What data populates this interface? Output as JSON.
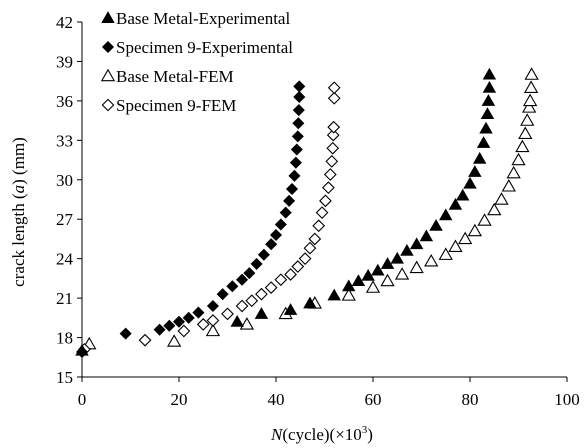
{
  "chart_data": {
    "type": "scatter",
    "title": "",
    "xlabel": {
      "prefix": "N",
      "rest": "(cycle)(×10",
      "sup": "3",
      "close": ")"
    },
    "ylabel": {
      "pre": "crack length (",
      "var": "a",
      "post": ") (mm)"
    },
    "xlim": [
      0,
      100
    ],
    "ylim": [
      15,
      42
    ],
    "x_ticks": [
      0,
      20,
      40,
      60,
      80,
      100
    ],
    "y_ticks": [
      15,
      18,
      21,
      24,
      27,
      30,
      33,
      36,
      39,
      42
    ],
    "grid": false,
    "legend_position": "top-left",
    "series": [
      {
        "name": "Base Metal-Experimental",
        "marker": "triangle-filled",
        "color": "#000000",
        "points": [
          [
            0.0,
            17.0
          ],
          [
            32.0,
            19.2
          ],
          [
            37.0,
            19.8
          ],
          [
            43.0,
            20.1
          ],
          [
            47.0,
            20.6
          ],
          [
            52.0,
            21.2
          ],
          [
            55.0,
            21.9
          ],
          [
            57.0,
            22.3
          ],
          [
            59.0,
            22.7
          ],
          [
            61.0,
            23.1
          ],
          [
            63.0,
            23.6
          ],
          [
            65.0,
            24.0
          ],
          [
            67.0,
            24.6
          ],
          [
            69.0,
            25.1
          ],
          [
            71.0,
            25.7
          ],
          [
            73.0,
            26.5
          ],
          [
            75.0,
            27.3
          ],
          [
            77.0,
            28.1
          ],
          [
            78.5,
            28.8
          ],
          [
            80.0,
            29.7
          ],
          [
            81.0,
            30.6
          ],
          [
            82.0,
            31.6
          ],
          [
            82.8,
            32.8
          ],
          [
            83.3,
            33.9
          ],
          [
            83.6,
            35.0
          ],
          [
            83.8,
            36.0
          ],
          [
            84.0,
            37.0
          ],
          [
            84.0,
            38.0
          ]
        ]
      },
      {
        "name": "Specimen 9-Experimental",
        "marker": "diamond-filled",
        "color": "#000000",
        "points": [
          [
            0.0,
            16.9
          ],
          [
            9.0,
            18.3
          ],
          [
            16.0,
            18.6
          ],
          [
            18.0,
            18.9
          ],
          [
            20.0,
            19.2
          ],
          [
            22.0,
            19.5
          ],
          [
            24.0,
            19.9
          ],
          [
            27.0,
            20.4
          ],
          [
            29.0,
            21.3
          ],
          [
            31.0,
            21.9
          ],
          [
            33.0,
            22.4
          ],
          [
            34.5,
            22.9
          ],
          [
            36.0,
            23.6
          ],
          [
            37.5,
            24.3
          ],
          [
            39.0,
            25.1
          ],
          [
            40.0,
            25.8
          ],
          [
            41.0,
            26.6
          ],
          [
            42.0,
            27.5
          ],
          [
            42.7,
            28.4
          ],
          [
            43.3,
            29.3
          ],
          [
            43.8,
            30.3
          ],
          [
            44.1,
            31.3
          ],
          [
            44.3,
            32.3
          ],
          [
            44.5,
            33.3
          ],
          [
            44.6,
            34.3
          ],
          [
            44.7,
            35.3
          ],
          [
            44.8,
            36.3
          ],
          [
            44.8,
            37.1
          ]
        ]
      },
      {
        "name": "Base Metal-FEM",
        "marker": "triangle-open",
        "color": "#000000",
        "points": [
          [
            1.5,
            17.5
          ],
          [
            19.0,
            17.7
          ],
          [
            27.0,
            18.5
          ],
          [
            34.0,
            19.0
          ],
          [
            42.0,
            19.8
          ],
          [
            48.0,
            20.6
          ],
          [
            55.0,
            21.2
          ],
          [
            60.0,
            21.8
          ],
          [
            63.0,
            22.3
          ],
          [
            66.0,
            22.8
          ],
          [
            69.0,
            23.3
          ],
          [
            72.0,
            23.8
          ],
          [
            75.0,
            24.3
          ],
          [
            77.0,
            24.9
          ],
          [
            79.0,
            25.5
          ],
          [
            81.0,
            26.1
          ],
          [
            83.0,
            26.9
          ],
          [
            85.0,
            27.7
          ],
          [
            86.5,
            28.5
          ],
          [
            88.0,
            29.5
          ],
          [
            89.0,
            30.5
          ],
          [
            90.0,
            31.5
          ],
          [
            90.8,
            32.5
          ],
          [
            91.4,
            33.5
          ],
          [
            91.8,
            34.5
          ],
          [
            92.2,
            35.5
          ],
          [
            92.4,
            36.0
          ],
          [
            92.6,
            37.0
          ],
          [
            92.7,
            38.0
          ]
        ]
      },
      {
        "name": "Specimen 9-FEM",
        "marker": "diamond-open",
        "color": "#000000",
        "points": [
          [
            0.5,
            17.1
          ],
          [
            13.0,
            17.8
          ],
          [
            21.0,
            18.5
          ],
          [
            25.0,
            19.0
          ],
          [
            27.0,
            19.3
          ],
          [
            30.0,
            19.8
          ],
          [
            33.0,
            20.4
          ],
          [
            35.0,
            20.8
          ],
          [
            37.0,
            21.3
          ],
          [
            39.0,
            21.8
          ],
          [
            41.0,
            22.4
          ],
          [
            43.0,
            22.8
          ],
          [
            44.5,
            23.4
          ],
          [
            46.0,
            24.0
          ],
          [
            47.0,
            24.8
          ],
          [
            48.0,
            25.5
          ],
          [
            48.8,
            26.5
          ],
          [
            49.5,
            27.5
          ],
          [
            50.2,
            28.4
          ],
          [
            50.8,
            29.4
          ],
          [
            51.2,
            30.4
          ],
          [
            51.5,
            31.4
          ],
          [
            51.7,
            32.4
          ],
          [
            51.8,
            33.4
          ],
          [
            51.9,
            34.0
          ],
          [
            52.0,
            36.2
          ],
          [
            52.0,
            37.0
          ]
        ]
      }
    ]
  }
}
